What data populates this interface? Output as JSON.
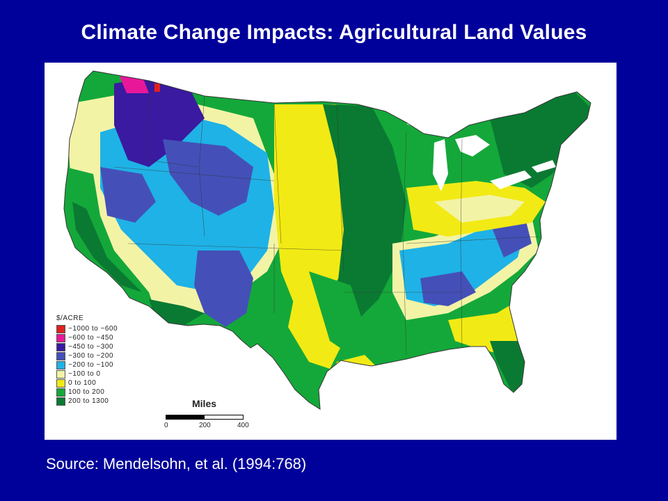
{
  "title": "Climate Change Impacts: Agricultural Land Values",
  "source": "Source: Mendelsohn, et al. (1994:768)",
  "legend": {
    "title": "$/ACRE",
    "items": [
      {
        "label": "−1000 to −600",
        "color": "#e02020"
      },
      {
        "label": "−600 to −450",
        "color": "#e8179a"
      },
      {
        "label": "−450 to −300",
        "color": "#3a1aa0"
      },
      {
        "label": "−300 to −200",
        "color": "#4450b8"
      },
      {
        "label": "−200 to −100",
        "color": "#1fb2e6"
      },
      {
        "label": "−100 to 0",
        "color": "#f3f3a6"
      },
      {
        "label": "0 to 100",
        "color": "#f2ea14"
      },
      {
        "label": "100 to 200",
        "color": "#14a83a"
      },
      {
        "label": "200 to 1300",
        "color": "#0a7a32"
      }
    ]
  },
  "scale": {
    "title": "Miles",
    "ticks": [
      "0",
      "200",
      "400"
    ]
  }
}
